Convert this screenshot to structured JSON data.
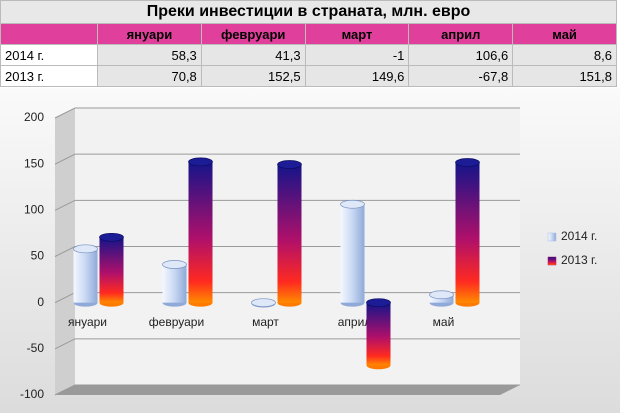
{
  "chart_data": {
    "type": "bar3d",
    "title": "Преки инвестиции в страната, млн. евро",
    "categories": [
      "януари",
      "февруари",
      "март",
      "април",
      "май"
    ],
    "series": [
      {
        "name": "2014 г.",
        "color": "#a9c1e8",
        "values": [
          58.3,
          41.3,
          -1,
          106.6,
          8.6
        ],
        "value_labels": [
          "58,3",
          "41,3",
          "-1",
          "106,6",
          "8,6"
        ]
      },
      {
        "name": "2013 г.",
        "color": "#b0106a",
        "values": [
          70.8,
          152.5,
          149.6,
          -67.8,
          151.8
        ],
        "value_labels": [
          "70,8",
          "152,5",
          "149,6",
          "-67,8",
          "151,8"
        ]
      }
    ],
    "ylim": [
      -100,
      200
    ],
    "yticks": [
      -100,
      -50,
      0,
      50,
      100,
      150,
      200
    ],
    "grid": true,
    "legend": "right"
  }
}
